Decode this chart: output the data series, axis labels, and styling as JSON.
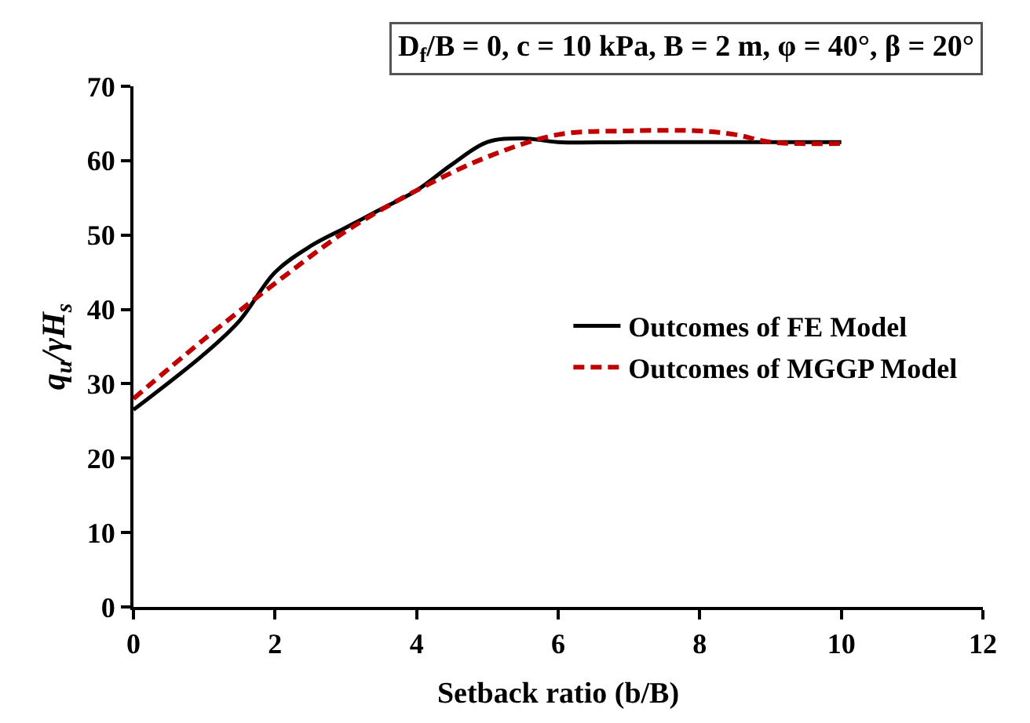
{
  "chart_data": {
    "type": "line",
    "title": "D$_{f}$/B = 0, c = 10 kPa, B = 2 m, φ = 40°, β = 20°",
    "xlabel": "Setback ratio (b/B)",
    "ylabel": "q$_{u}$/γH$_{s}$",
    "xlim": [
      0,
      12
    ],
    "xticks": [
      0,
      2,
      4,
      6,
      8,
      10,
      12
    ],
    "ylim": [
      0,
      70
    ],
    "yticks": [
      0,
      10,
      20,
      30,
      40,
      50,
      60,
      70
    ],
    "legend": "right",
    "marker": "none",
    "series": [
      {
        "name": "Outcomes of FE Model",
        "color": "#000000",
        "line_style": "solid",
        "x": [
          0,
          1,
          1.5,
          2,
          2.5,
          3,
          3.5,
          4,
          4.5,
          5,
          5.5,
          6,
          7,
          8,
          9,
          10
        ],
        "values": [
          26.5,
          34,
          38.5,
          45,
          48.5,
          51,
          53.5,
          56,
          59.5,
          62.5,
          63,
          62.5,
          62.5,
          62.5,
          62.5,
          62.5
        ]
      },
      {
        "name": "Outcomes of MGGP Model",
        "color": "#c00000",
        "line_style": "dashed",
        "x": [
          0,
          1,
          2,
          3,
          4,
          5,
          6,
          7,
          8,
          8.5,
          9,
          10
        ],
        "values": [
          28,
          36,
          43.5,
          50.5,
          56,
          60.5,
          63.5,
          64,
          64,
          63.5,
          62.5,
          62.3
        ]
      }
    ]
  }
}
